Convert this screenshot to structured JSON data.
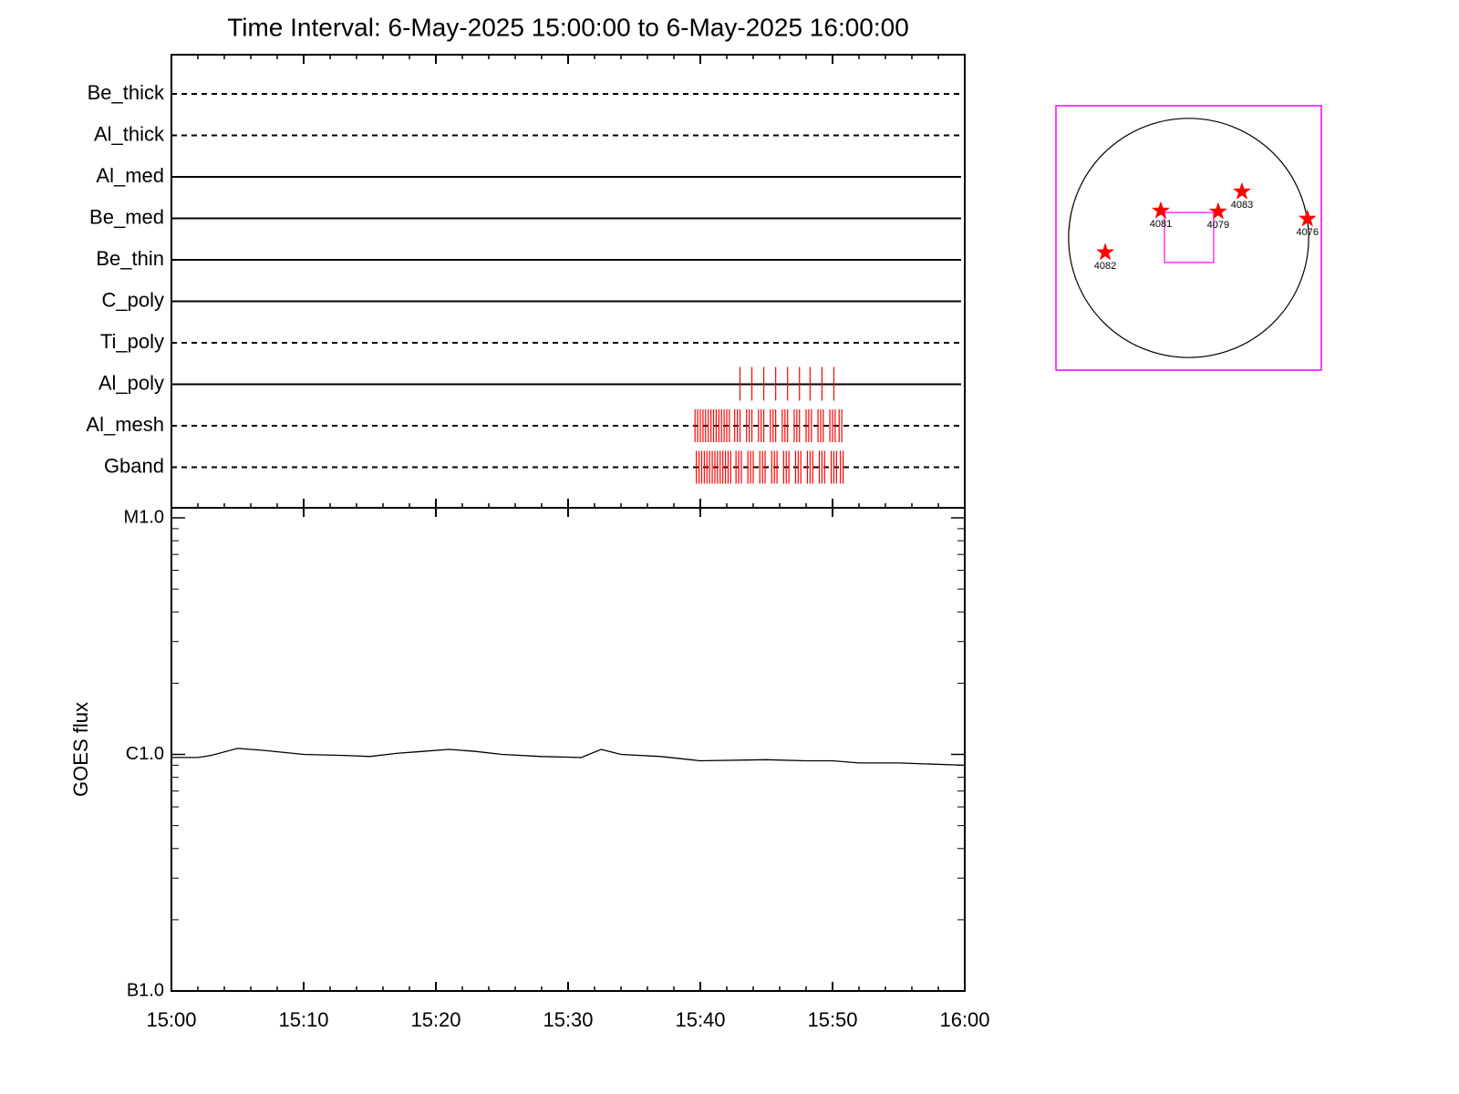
{
  "chart_data": [
    {
      "type": "timeline",
      "title": "Time Interval:  6-May-2025 15:00:00 to  6-May-2025 16:00:00",
      "categories": [
        "Be_thick",
        "Al_thick",
        "Al_med",
        "Be_med",
        "Be_thin",
        "C_poly",
        "Ti_poly",
        "Al_poly",
        "Al_mesh",
        "Gband"
      ],
      "line_styles": [
        "dashed",
        "dashed",
        "solid",
        "solid",
        "solid",
        "solid",
        "dashed",
        "solid",
        "dashed",
        "dashed"
      ],
      "xlim": [
        0,
        60
      ],
      "xticks": [
        0,
        10,
        20,
        30,
        40,
        50,
        60
      ],
      "event_color": "#ff0000",
      "events": [
        {
          "row": 7,
          "x": [
            43.0,
            43.9,
            44.8,
            45.7,
            46.6,
            47.5,
            48.3,
            49.2,
            50.1
          ]
        },
        {
          "row": 8,
          "x": [
            39.6,
            39.8,
            40.0,
            40.2,
            40.4,
            40.6,
            40.8,
            41.0,
            41.2,
            41.4,
            41.6,
            41.8,
            42.0,
            42.2,
            42.6,
            42.8,
            43.0,
            43.5,
            43.7,
            43.9,
            44.4,
            44.6,
            44.8,
            45.3,
            45.5,
            45.7,
            46.2,
            46.4,
            46.6,
            47.1,
            47.3,
            47.5,
            48.0,
            48.2,
            48.4,
            48.9,
            49.1,
            49.3,
            49.8,
            50.0,
            50.2,
            50.5,
            50.7
          ]
        },
        {
          "row": 9,
          "x": [
            39.7,
            39.9,
            40.1,
            40.3,
            40.5,
            40.7,
            40.9,
            41.1,
            41.3,
            41.5,
            41.7,
            41.9,
            42.1,
            42.3,
            42.7,
            42.9,
            43.1,
            43.6,
            43.8,
            44.0,
            44.5,
            44.7,
            44.9,
            45.4,
            45.6,
            45.8,
            46.3,
            46.5,
            46.7,
            47.2,
            47.4,
            47.6,
            48.1,
            48.3,
            48.5,
            49.0,
            49.2,
            49.4,
            49.9,
            50.1,
            50.3,
            50.6,
            50.8
          ]
        }
      ]
    },
    {
      "type": "line",
      "log_scale": true,
      "minor_ticks": true,
      "ylabel": "GOES flux",
      "xlim": [
        0,
        60
      ],
      "xticks": [
        {
          "value": 0,
          "label": "15:00"
        },
        {
          "value": 10,
          "label": "15:10"
        },
        {
          "value": 20,
          "label": "15:20"
        },
        {
          "value": 30,
          "label": "15:30"
        },
        {
          "value": 40,
          "label": "15:40"
        },
        {
          "value": 50,
          "label": "15:50"
        },
        {
          "value": 60,
          "label": "16:00"
        }
      ],
      "ylim": [
        1e-07,
        1e-05
      ],
      "yticks": [
        {
          "value": 1e-07,
          "label": "B1.0"
        },
        {
          "value": 1e-06,
          "label": "C1.0"
        },
        {
          "value": 1e-05,
          "label": "M1.0"
        }
      ],
      "x": [
        0,
        2,
        3,
        5,
        7,
        10,
        13,
        15,
        17,
        19,
        21,
        23,
        25,
        28,
        31,
        32.5,
        34,
        37,
        40,
        45,
        48,
        50,
        52,
        55,
        60
      ],
      "series": [
        {
          "color": "#000000",
          "values": [
            9.7e-07,
            9.7e-07,
            9.9e-07,
            1.06e-06,
            1.04e-06,
            1e-06,
            9.9e-07,
            9.8e-07,
            1.01e-06,
            1.03e-06,
            1.05e-06,
            1.03e-06,
            1e-06,
            9.8e-07,
            9.7e-07,
            1.05e-06,
            1e-06,
            9.8e-07,
            9.4e-07,
            9.5e-07,
            9.4e-07,
            9.4e-07,
            9.2e-07,
            9.2e-07,
            9e-07
          ]
        }
      ]
    },
    {
      "type": "map",
      "xlim": [
        -1050,
        1050
      ],
      "ylim": [
        -1050,
        1050
      ],
      "radius": 950,
      "box_color": "#ff00ff",
      "star_color": "#ff0000",
      "fov": {
        "x": [
          -191,
          198
        ],
        "y": [
          -195,
          202
        ]
      },
      "regions": [
        {
          "label": "4081",
          "x": -220,
          "y": 216
        },
        {
          "label": "4079",
          "x": 234,
          "y": 209
        },
        {
          "label": "4083",
          "x": 422,
          "y": 368
        },
        {
          "label": "4076",
          "x": 940,
          "y": 152
        },
        {
          "label": "4082",
          "x": -660,
          "y": -115
        }
      ]
    }
  ]
}
